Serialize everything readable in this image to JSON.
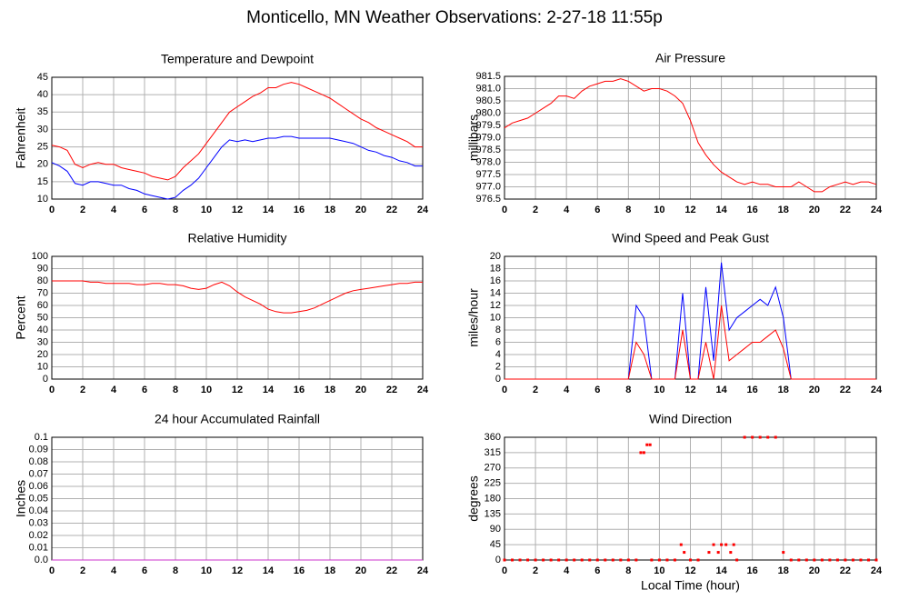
{
  "title": "Monticello, MN Weather Observations: 2-27-18 11:55p",
  "chart_data": [
    {
      "type": "line",
      "title": "Temperature and Dewpoint",
      "ylabel": "Fahrenheit",
      "x": [
        0,
        0.5,
        1,
        1.5,
        2,
        2.5,
        3,
        3.5,
        4,
        4.5,
        5,
        5.5,
        6,
        6.5,
        7,
        7.5,
        8,
        8.5,
        9,
        9.5,
        10,
        10.5,
        11,
        11.5,
        12,
        12.5,
        13,
        13.5,
        14,
        14.5,
        15,
        15.5,
        16,
        16.5,
        17,
        17.5,
        18,
        18.5,
        19,
        19.5,
        20,
        20.5,
        21,
        21.5,
        22,
        22.5,
        23,
        23.5,
        24
      ],
      "series": [
        {
          "color": "#ff0000",
          "values": [
            25.5,
            25,
            24,
            20,
            19,
            20,
            20.5,
            20,
            20,
            19,
            18.5,
            18,
            17.5,
            16.5,
            16,
            15.5,
            16.5,
            19,
            21,
            23,
            26,
            29,
            32,
            35,
            36.5,
            38,
            39.5,
            40.5,
            42,
            42,
            43,
            43.5,
            43,
            42,
            41,
            40,
            39,
            37.5,
            36,
            34.5,
            33,
            32,
            30.5,
            29.5,
            28.5,
            27.5,
            26.5,
            25,
            25
          ]
        },
        {
          "color": "#0000ff",
          "values": [
            20.5,
            19.5,
            18,
            14.5,
            14,
            15,
            15,
            14.5,
            14,
            14,
            13,
            12.5,
            11.5,
            11,
            10.5,
            10,
            10.5,
            12.5,
            14,
            16,
            19,
            22,
            25,
            27,
            26.5,
            27,
            26.5,
            27,
            27.5,
            27.5,
            28,
            28,
            27.5,
            27.5,
            27.5,
            27.5,
            27.5,
            27,
            26.5,
            26,
            25,
            24,
            23.5,
            22.5,
            22,
            21,
            20.5,
            19.5,
            19.5
          ]
        }
      ],
      "xlim": [
        0,
        24
      ],
      "xticks": [
        0,
        2,
        4,
        6,
        8,
        10,
        12,
        14,
        16,
        18,
        20,
        22,
        24
      ],
      "ylim": [
        10,
        45
      ],
      "yticks": [
        10,
        15,
        20,
        25,
        30,
        35,
        40,
        45
      ],
      "grid": true
    },
    {
      "type": "line",
      "title": "Air Pressure",
      "ylabel": "millibars",
      "x": [
        0,
        0.5,
        1,
        1.5,
        2,
        2.5,
        3,
        3.5,
        4,
        4.5,
        5,
        5.5,
        6,
        6.5,
        7,
        7.5,
        8,
        8.5,
        9,
        9.5,
        10,
        10.5,
        11,
        11.5,
        12,
        12.5,
        13,
        13.5,
        14,
        14.5,
        15,
        15.5,
        16,
        16.5,
        17,
        17.5,
        18,
        18.5,
        19,
        19.5,
        20,
        20.5,
        21,
        21.5,
        22,
        22.5,
        23,
        23.5,
        24
      ],
      "series": [
        {
          "color": "#ff0000",
          "values": [
            979.4,
            979.6,
            979.7,
            979.8,
            980.0,
            980.2,
            980.4,
            980.7,
            980.7,
            980.6,
            980.9,
            981.1,
            981.2,
            981.3,
            981.3,
            981.4,
            981.3,
            981.1,
            980.9,
            981.0,
            981.0,
            980.9,
            980.7,
            980.4,
            979.7,
            978.8,
            978.3,
            977.9,
            977.6,
            977.4,
            977.2,
            977.1,
            977.2,
            977.1,
            977.1,
            977.0,
            977.0,
            977.0,
            977.2,
            977.0,
            976.8,
            976.8,
            977.0,
            977.1,
            977.2,
            977.1,
            977.2,
            977.2,
            977.1
          ]
        }
      ],
      "xlim": [
        0,
        24
      ],
      "xticks": [
        0,
        2,
        4,
        6,
        8,
        10,
        12,
        14,
        16,
        18,
        20,
        22,
        24
      ],
      "ylim": [
        976.5,
        981.5
      ],
      "yticks": [
        976.5,
        {
          "value": 977,
          "label": "977.0"
        },
        977.5,
        {
          "value": 978,
          "label": "978.0"
        },
        978.5,
        {
          "value": 979,
          "label": "979.0"
        },
        979.5,
        {
          "value": 980,
          "label": "980.0"
        },
        980.5,
        {
          "value": 981,
          "label": "981.0"
        },
        981.5
      ],
      "grid": true
    },
    {
      "type": "line",
      "title": "Relative Humidity",
      "ylabel": "Percent",
      "x": [
        0,
        0.5,
        1,
        1.5,
        2,
        2.5,
        3,
        3.5,
        4,
        4.5,
        5,
        5.5,
        6,
        6.5,
        7,
        7.5,
        8,
        8.5,
        9,
        9.5,
        10,
        10.5,
        11,
        11.5,
        12,
        12.5,
        13,
        13.5,
        14,
        14.5,
        15,
        15.5,
        16,
        16.5,
        17,
        17.5,
        18,
        18.5,
        19,
        19.5,
        20,
        20.5,
        21,
        21.5,
        22,
        22.5,
        23,
        23.5,
        24
      ],
      "series": [
        {
          "color": "#ff0000",
          "values": [
            80,
            80,
            80,
            80,
            80,
            79,
            79,
            78,
            78,
            78,
            78,
            77,
            77,
            78,
            78,
            77,
            77,
            76,
            74,
            73,
            74,
            77,
            79,
            76,
            71,
            67,
            64,
            61,
            57,
            55,
            54,
            54,
            55,
            56,
            58,
            61,
            64,
            67,
            70,
            72,
            73,
            74,
            75,
            76,
            77,
            78,
            78,
            79,
            79
          ]
        }
      ],
      "xlim": [
        0,
        24
      ],
      "xticks": [
        0,
        2,
        4,
        6,
        8,
        10,
        12,
        14,
        16,
        18,
        20,
        22,
        24
      ],
      "ylim": [
        0,
        100
      ],
      "yticks": [
        0,
        10,
        20,
        30,
        40,
        50,
        60,
        70,
        80,
        90,
        100
      ],
      "grid": true
    },
    {
      "type": "line",
      "title": "Wind Speed and Peak Gust",
      "ylabel": "miles/hour",
      "x": [
        0,
        0.5,
        1,
        1.5,
        2,
        2.5,
        3,
        3.5,
        4,
        4.5,
        5,
        5.5,
        6,
        6.5,
        7,
        7.5,
        8,
        8.5,
        9,
        9.5,
        10,
        10.5,
        11,
        11.5,
        12,
        12.5,
        13,
        13.5,
        14,
        14.5,
        15,
        15.5,
        16,
        16.5,
        17,
        17.5,
        18,
        18.5,
        19,
        19.5,
        20,
        20.5,
        21,
        21.5,
        22,
        22.5,
        23,
        23.5,
        24
      ],
      "series": [
        {
          "color": "#0000ff",
          "values": [
            0,
            0,
            0,
            0,
            0,
            0,
            0,
            0,
            0,
            0,
            0,
            0,
            0,
            0,
            0,
            0,
            0,
            12,
            10,
            0,
            0,
            0,
            0,
            14,
            0,
            0,
            15,
            3,
            19,
            8,
            10,
            11,
            12,
            13,
            12,
            15,
            10,
            0,
            0,
            0,
            0,
            0,
            0,
            0,
            0,
            0,
            0,
            0,
            0
          ]
        },
        {
          "color": "#ff0000",
          "values": [
            0,
            0,
            0,
            0,
            0,
            0,
            0,
            0,
            0,
            0,
            0,
            0,
            0,
            0,
            0,
            0,
            0,
            6,
            4,
            0,
            0,
            0,
            0,
            8,
            0,
            0,
            6,
            0,
            12,
            3,
            4,
            5,
            6,
            6,
            7,
            8,
            5,
            0,
            0,
            0,
            0,
            0,
            0,
            0,
            0,
            0,
            0,
            0,
            0
          ]
        }
      ],
      "xlim": [
        0,
        24
      ],
      "xticks": [
        0,
        2,
        4,
        6,
        8,
        10,
        12,
        14,
        16,
        18,
        20,
        22,
        24
      ],
      "ylim": [
        0,
        20
      ],
      "yticks": [
        0,
        2,
        4,
        6,
        8,
        10,
        12,
        14,
        16,
        18,
        20
      ],
      "grid": true
    },
    {
      "type": "line",
      "title": "24 hour Accumulated Rainfall",
      "ylabel": "Inches",
      "x": [
        0,
        24
      ],
      "series": [
        {
          "color": "#cc33cc",
          "values": [
            0,
            0
          ]
        }
      ],
      "xlim": [
        0,
        24
      ],
      "xticks": [
        0,
        2,
        4,
        6,
        8,
        10,
        12,
        14,
        16,
        18,
        20,
        22,
        24
      ],
      "ylim": [
        0,
        0.1
      ],
      "yticks": [
        {
          "value": 0,
          "label": "0.0"
        },
        0.01,
        0.02,
        0.03,
        0.04,
        0.05,
        0.06,
        0.07,
        0.08,
        0.09,
        0.1
      ],
      "grid": true
    },
    {
      "type": "scatter",
      "title": "Wind Direction",
      "ylabel": "degrees",
      "xlabel": "Local Time (hour)",
      "x": [
        0,
        0.5,
        1,
        1.5,
        2,
        2.5,
        3,
        3.5,
        4,
        4.5,
        5,
        5.5,
        6,
        6.5,
        7,
        7.5,
        8,
        8.5,
        8.8,
        9,
        9.2,
        9.4,
        9.5,
        10,
        10.5,
        11,
        11.4,
        11.6,
        12,
        12.5,
        13.2,
        13.5,
        13.8,
        14,
        14.3,
        14.6,
        14.8,
        15,
        15.5,
        16,
        16.5,
        17,
        17.5,
        18,
        18.5,
        19,
        19.5,
        20,
        20.5,
        21,
        21.5,
        22,
        22.5,
        23,
        23.5,
        24
      ],
      "series": [
        {
          "color": "#ff0000",
          "values": [
            0,
            0,
            0,
            0,
            0,
            0,
            0,
            0,
            0,
            0,
            0,
            0,
            0,
            0,
            0,
            0,
            0,
            0,
            315,
            315,
            338,
            338,
            0,
            0,
            0,
            0,
            45,
            22.5,
            0,
            0,
            22.5,
            45,
            22.5,
            45,
            45,
            22.5,
            45,
            0,
            360,
            360,
            360,
            360,
            360,
            22.5,
            0,
            0,
            0,
            0,
            0,
            0,
            0,
            0,
            0,
            0,
            0,
            0
          ]
        }
      ],
      "xlim": [
        0,
        24
      ],
      "xticks": [
        0,
        2,
        4,
        6,
        8,
        10,
        12,
        14,
        16,
        18,
        20,
        22,
        24
      ],
      "ylim": [
        0,
        360
      ],
      "yticks": [
        0,
        45,
        90,
        135,
        180,
        225,
        270,
        315,
        360
      ],
      "grid": true
    }
  ]
}
